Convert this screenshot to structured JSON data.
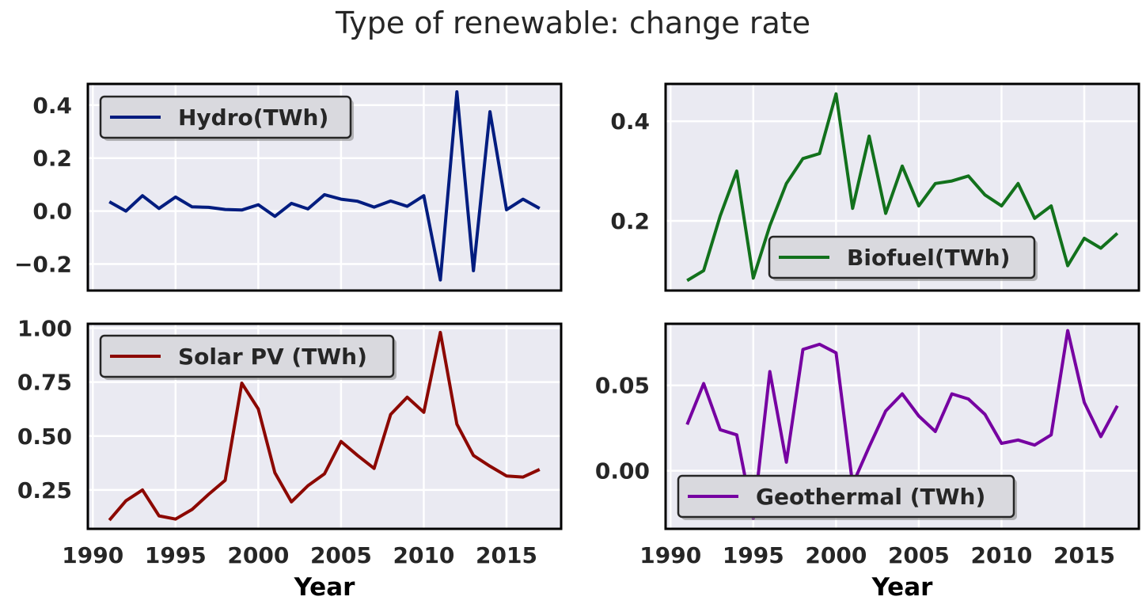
{
  "figure": {
    "title": "Type of renewable: change rate"
  },
  "chart_data": [
    {
      "type": "line",
      "series": [
        {
          "name": "Hydro(TWh)",
          "color": "#001c7f"
        }
      ],
      "x": [
        1991,
        1992,
        1993,
        1994,
        1995,
        1996,
        1997,
        1998,
        1999,
        2000,
        2001,
        2002,
        2003,
        2004,
        2005,
        2006,
        2007,
        2008,
        2009,
        2010,
        2011,
        2012,
        2013,
        2014,
        2015,
        2016,
        2017
      ],
      "values": [
        0.035,
        0.0,
        0.058,
        0.01,
        0.053,
        0.016,
        0.014,
        0.006,
        0.004,
        0.024,
        -0.02,
        0.029,
        0.008,
        0.062,
        0.045,
        0.037,
        0.015,
        0.038,
        0.018,
        0.058,
        -0.26,
        0.45,
        -0.225,
        0.375,
        0.005,
        0.045,
        0.01
      ],
      "xlabel": "",
      "ylabel": "",
      "xlim": [
        1989.7,
        2018.3
      ],
      "ylim": [
        -0.3,
        0.48
      ],
      "yticks": [
        -0.2,
        0.0,
        0.2,
        0.4
      ],
      "ytick_labels": [
        "−0.2",
        "0.0",
        "0.2",
        "0.4"
      ],
      "xticks": [
        1990,
        1995,
        2000,
        2005,
        2010,
        2015
      ],
      "xtick_labels": [],
      "legend": "top-left",
      "grid": true
    },
    {
      "type": "line",
      "series": [
        {
          "name": "Biofuel(TWh)",
          "color": "#12711c"
        }
      ],
      "x": [
        1991,
        1992,
        1993,
        1994,
        1995,
        1996,
        1997,
        1998,
        1999,
        2000,
        2001,
        2002,
        2003,
        2004,
        2005,
        2006,
        2007,
        2008,
        2009,
        2010,
        2011,
        2012,
        2013,
        2014,
        2015,
        2016,
        2017
      ],
      "values": [
        0.08,
        0.1,
        0.21,
        0.3,
        0.085,
        0.19,
        0.275,
        0.325,
        0.335,
        0.455,
        0.225,
        0.37,
        0.215,
        0.31,
        0.23,
        0.275,
        0.28,
        0.29,
        0.252,
        0.23,
        0.275,
        0.205,
        0.23,
        0.11,
        0.165,
        0.145,
        0.175
      ],
      "xlabel": "",
      "ylabel": "",
      "xlim": [
        1989.7,
        2018.3
      ],
      "ylim": [
        0.06,
        0.475
      ],
      "yticks": [
        0.2,
        0.4
      ],
      "ytick_labels": [
        "0.2",
        "0.4"
      ],
      "xticks": [
        1990,
        1995,
        2000,
        2005,
        2010,
        2015
      ],
      "xtick_labels": [],
      "legend": "bottom-right",
      "grid": true
    },
    {
      "type": "line",
      "series": [
        {
          "name": "Solar PV (TWh)",
          "color": "#8c0800"
        }
      ],
      "x": [
        1991,
        1992,
        1993,
        1994,
        1995,
        1996,
        1997,
        1998,
        1999,
        2000,
        2001,
        2002,
        2003,
        2004,
        2005,
        2006,
        2007,
        2008,
        2009,
        2010,
        2011,
        2012,
        2013,
        2014,
        2015,
        2016,
        2017
      ],
      "values": [
        0.11,
        0.2,
        0.25,
        0.13,
        0.115,
        0.16,
        0.23,
        0.295,
        0.745,
        0.625,
        0.33,
        0.195,
        0.27,
        0.325,
        0.475,
        0.41,
        0.35,
        0.6,
        0.68,
        0.61,
        0.98,
        0.555,
        0.41,
        0.36,
        0.315,
        0.31,
        0.345
      ],
      "xlabel": "Year",
      "ylabel": "",
      "xlim": [
        1989.7,
        2018.3
      ],
      "ylim": [
        0.07,
        1.02
      ],
      "yticks": [
        0.25,
        0.5,
        0.75,
        1.0
      ],
      "ytick_labels": [
        "0.25",
        "0.50",
        "0.75",
        "1.00"
      ],
      "xticks": [
        1990,
        1995,
        2000,
        2005,
        2010,
        2015
      ],
      "xtick_labels": [
        "1990",
        "1995",
        "2000",
        "2005",
        "2010",
        "2015"
      ],
      "legend": "top-left",
      "grid": true
    },
    {
      "type": "line",
      "series": [
        {
          "name": "Geothermal (TWh)",
          "color": "#7600a1"
        }
      ],
      "x": [
        1991,
        1992,
        1993,
        1994,
        1995,
        1996,
        1997,
        1998,
        1999,
        2000,
        2001,
        2002,
        2003,
        2004,
        2005,
        2006,
        2007,
        2008,
        2009,
        2010,
        2011,
        2012,
        2013,
        2014,
        2015,
        2016,
        2017
      ],
      "values": [
        0.027,
        0.051,
        0.024,
        0.021,
        -0.028,
        0.058,
        0.005,
        0.071,
        0.074,
        0.069,
        -0.008,
        0.014,
        0.035,
        0.045,
        0.032,
        0.023,
        0.045,
        0.042,
        0.033,
        0.016,
        0.018,
        0.015,
        0.021,
        0.082,
        0.04,
        0.02,
        0.038
      ],
      "xlabel": "Year",
      "ylabel": "",
      "xlim": [
        1989.7,
        2018.3
      ],
      "ylim": [
        -0.034,
        0.086
      ],
      "yticks": [
        0.0,
        0.05
      ],
      "ytick_labels": [
        "0.00",
        "0.05"
      ],
      "xticks": [
        1990,
        1995,
        2000,
        2005,
        2010,
        2015
      ],
      "xtick_labels": [
        "1990",
        "1995",
        "2000",
        "2005",
        "2010",
        "2015"
      ],
      "legend": "bottom-left",
      "grid": true
    }
  ]
}
